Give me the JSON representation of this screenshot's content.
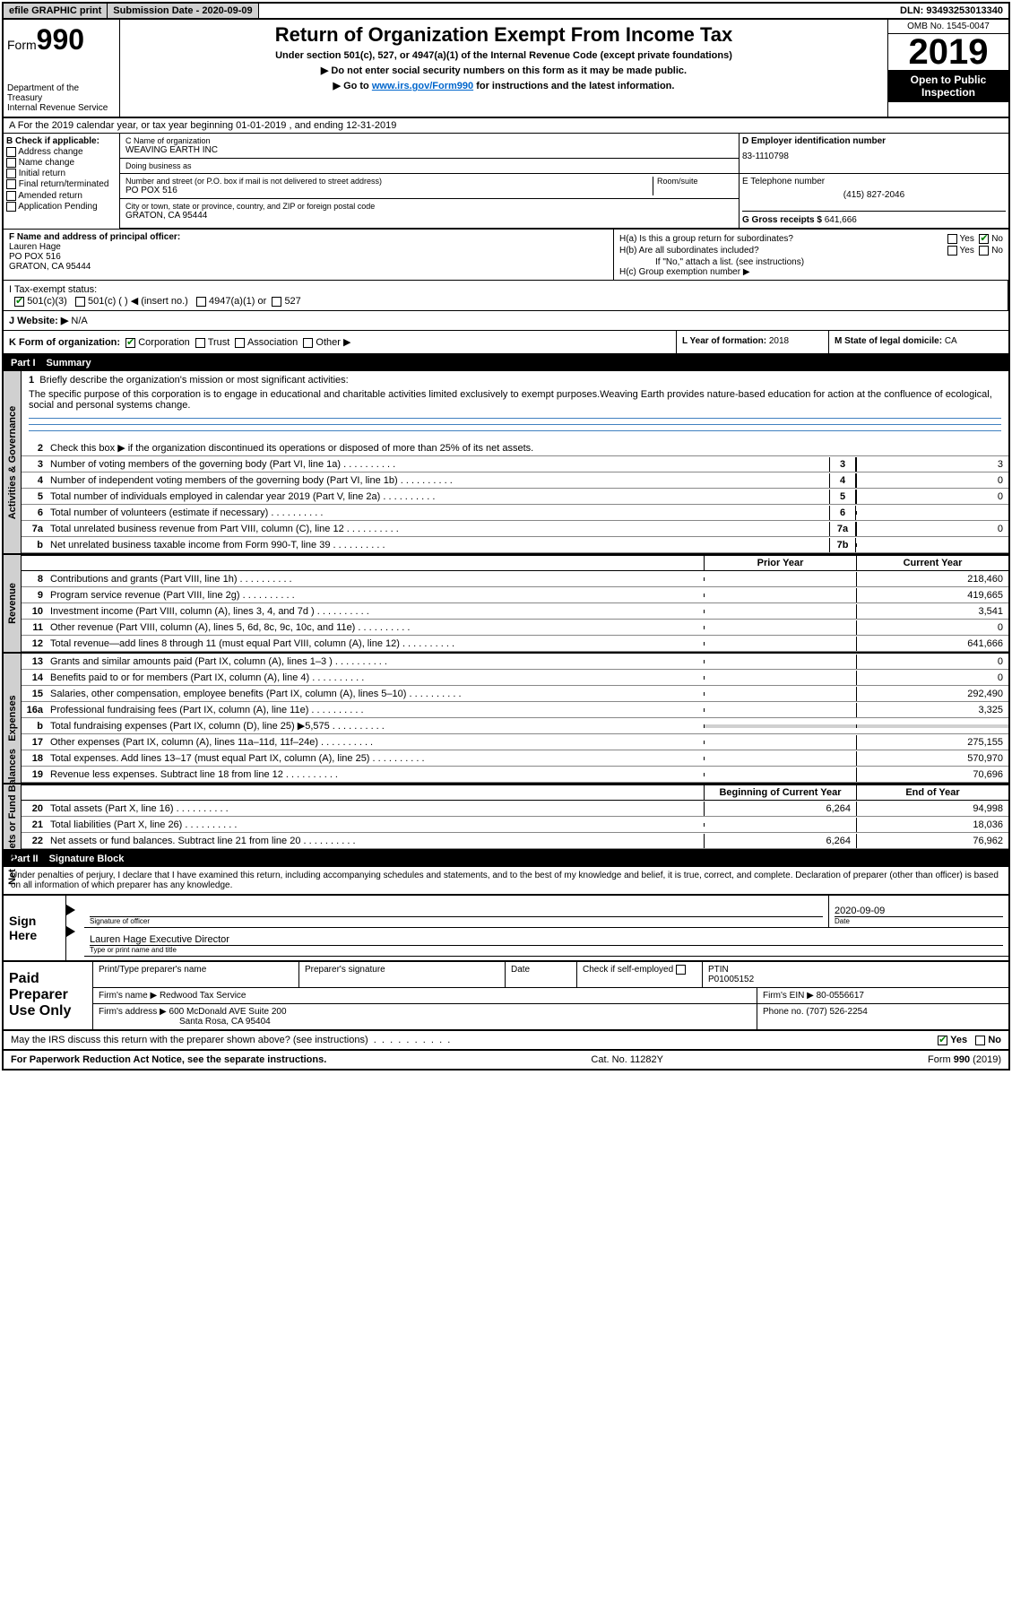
{
  "topbar": {
    "efile": "efile GRAPHIC print",
    "submission_label": "Submission Date - ",
    "submission_date": "2020-09-09",
    "dln": "DLN: 93493253013340"
  },
  "header": {
    "form_word": "Form",
    "form_num": "990",
    "dept": "Department of the Treasury\nInternal Revenue Service",
    "title": "Return of Organization Exempt From Income Tax",
    "subtitle1": "Under section 501(c), 527, or 4947(a)(1) of the Internal Revenue Code (except private foundations)",
    "subtitle2": "▶ Do not enter social security numbers on this form as it may be made public.",
    "subtitle3_pre": "▶ Go to ",
    "subtitle3_link": "www.irs.gov/Form990",
    "subtitle3_post": " for instructions and the latest information.",
    "omb": "OMB No. 1545-0047",
    "year": "2019",
    "open_pub": "Open to Public Inspection"
  },
  "row_a": "A  For the 2019 calendar year, or tax year beginning 01-01-2019     , and ending 12-31-2019",
  "b": {
    "header": "B Check if applicable:",
    "opts": [
      "Address change",
      "Name change",
      "Initial return",
      "Final return/terminated",
      "Amended return",
      "Application Pending"
    ]
  },
  "c": {
    "name_lbl": "C Name of organization",
    "name": "WEAVING EARTH INC",
    "dba_lbl": "Doing business as",
    "dba": "",
    "addr_lbl": "Number and street (or P.O. box if mail is not delivered to street address)",
    "room_lbl": "Room/suite",
    "addr": "PO POX 516",
    "city_lbl": "City or town, state or province, country, and ZIP or foreign postal code",
    "city": "GRATON, CA  95444"
  },
  "d": {
    "lbl": "D Employer identification number",
    "val": "83-1110798"
  },
  "e": {
    "lbl": "E Telephone number",
    "val": "(415) 827-2046"
  },
  "g": {
    "lbl": "G Gross receipts $ ",
    "val": "641,666"
  },
  "f": {
    "lbl": "F  Name and address of principal officer:",
    "name": "Lauren Hage",
    "addr1": "PO POX 516",
    "addr2": "GRATON, CA  95444"
  },
  "h": {
    "ha": "H(a)  Is this a group return for subordinates?",
    "hb": "H(b)  Are all subordinates included?",
    "hb_note": "If \"No,\" attach a list. (see instructions)",
    "hc": "H(c)  Group exemption number ▶",
    "yes": "Yes",
    "no": "No"
  },
  "i": {
    "lbl": "I  Tax-exempt status:",
    "o1": "501(c)(3)",
    "o2": "501(c) (   ) ◀ (insert no.)",
    "o3": "4947(a)(1) or",
    "o4": "527"
  },
  "j": {
    "lbl": "J   Website: ▶",
    "val": "N/A"
  },
  "k": {
    "lbl": "K Form of organization:",
    "o1": "Corporation",
    "o2": "Trust",
    "o3": "Association",
    "o4": "Other ▶"
  },
  "l": {
    "lbl": "L Year of formation: ",
    "val": "2018"
  },
  "m": {
    "lbl": "M State of legal domicile: ",
    "val": "CA"
  },
  "part1": {
    "hdr_num": "Part I",
    "hdr_title": "Summary",
    "vert1": "Activities & Governance",
    "vert2": "Revenue",
    "vert3": "Expenses",
    "vert4": "Net Assets or Fund Balances",
    "line1_lbl": "Briefly describe the organization's mission or most significant activities:",
    "line1_txt": "The specific purpose of this corporation is to engage in educational and charitable activities limited exclusively to exempt purposes.Weaving Earth provides nature-based education for action at the confluence of ecological, social and personal systems change.",
    "line2": "Check this box ▶     if the organization discontinued its operations or disposed of more than 25% of its net assets.",
    "prior_year": "Prior Year",
    "current_year": "Current Year",
    "boy": "Beginning of Current Year",
    "eoy": "End of Year",
    "rows_ag": [
      {
        "n": "3",
        "d": "Number of voting members of the governing body (Part VI, line 1a)",
        "box": "3",
        "v": "3"
      },
      {
        "n": "4",
        "d": "Number of independent voting members of the governing body (Part VI, line 1b)",
        "box": "4",
        "v": "0"
      },
      {
        "n": "5",
        "d": "Total number of individuals employed in calendar year 2019 (Part V, line 2a)",
        "box": "5",
        "v": "0"
      },
      {
        "n": "6",
        "d": "Total number of volunteers (estimate if necessary)",
        "box": "6",
        "v": ""
      },
      {
        "n": "7a",
        "d": "Total unrelated business revenue from Part VIII, column (C), line 12",
        "box": "7a",
        "v": "0"
      },
      {
        "n": "b",
        "d": "Net unrelated business taxable income from Form 990-T, line 39",
        "box": "7b",
        "v": ""
      }
    ],
    "rows_rev": [
      {
        "n": "8",
        "d": "Contributions and grants (Part VIII, line 1h)",
        "p": "",
        "c": "218,460"
      },
      {
        "n": "9",
        "d": "Program service revenue (Part VIII, line 2g)",
        "p": "",
        "c": "419,665"
      },
      {
        "n": "10",
        "d": "Investment income (Part VIII, column (A), lines 3, 4, and 7d )",
        "p": "",
        "c": "3,541"
      },
      {
        "n": "11",
        "d": "Other revenue (Part VIII, column (A), lines 5, 6d, 8c, 9c, 10c, and 11e)",
        "p": "",
        "c": "0"
      },
      {
        "n": "12",
        "d": "Total revenue—add lines 8 through 11 (must equal Part VIII, column (A), line 12)",
        "p": "",
        "c": "641,666"
      }
    ],
    "rows_exp": [
      {
        "n": "13",
        "d": "Grants and similar amounts paid (Part IX, column (A), lines 1–3 )",
        "p": "",
        "c": "0"
      },
      {
        "n": "14",
        "d": "Benefits paid to or for members (Part IX, column (A), line 4)",
        "p": "",
        "c": "0"
      },
      {
        "n": "15",
        "d": "Salaries, other compensation, employee benefits (Part IX, column (A), lines 5–10)",
        "p": "",
        "c": "292,490"
      },
      {
        "n": "16a",
        "d": "Professional fundraising fees (Part IX, column (A), line 11e)",
        "p": "",
        "c": "3,325"
      },
      {
        "n": "b",
        "d": "Total fundraising expenses (Part IX, column (D), line 25) ▶5,575",
        "shaded": true
      },
      {
        "n": "17",
        "d": "Other expenses (Part IX, column (A), lines 11a–11d, 11f–24e)",
        "p": "",
        "c": "275,155"
      },
      {
        "n": "18",
        "d": "Total expenses. Add lines 13–17 (must equal Part IX, column (A), line 25)",
        "p": "",
        "c": "570,970"
      },
      {
        "n": "19",
        "d": "Revenue less expenses. Subtract line 18 from line 12",
        "p": "",
        "c": "70,696"
      }
    ],
    "rows_net": [
      {
        "n": "20",
        "d": "Total assets (Part X, line 16)",
        "p": "6,264",
        "c": "94,998"
      },
      {
        "n": "21",
        "d": "Total liabilities (Part X, line 26)",
        "p": "",
        "c": "18,036"
      },
      {
        "n": "22",
        "d": "Net assets or fund balances. Subtract line 21 from line 20",
        "p": "6,264",
        "c": "76,962"
      }
    ]
  },
  "part2": {
    "hdr_num": "Part II",
    "hdr_title": "Signature Block",
    "penalties": "Under penalties of perjury, I declare that I have examined this return, including accompanying schedules and statements, and to the best of my knowledge and belief, it is true, correct, and complete. Declaration of preparer (other than officer) is based on all information of which preparer has any knowledge."
  },
  "sign": {
    "label": "Sign Here",
    "sig_officer": "Signature of officer",
    "date_lbl": "Date",
    "date_val": "2020-09-09",
    "name_title": "Lauren Hage  Executive Director",
    "type_lbl": "Type or print name and title"
  },
  "paid": {
    "label": "Paid Preparer Use Only",
    "print_name_lbl": "Print/Type preparer's name",
    "sig_lbl": "Preparer's signature",
    "date_lbl": "Date",
    "check_lbl": "Check       if self-employed",
    "ptin_lbl": "PTIN",
    "ptin": "P01005152",
    "firm_name_lbl": "Firm's name    ▶",
    "firm_name": "Redwood Tax Service",
    "firm_ein_lbl": "Firm's EIN ▶",
    "firm_ein": "80-0556617",
    "firm_addr_lbl": "Firm's address ▶",
    "firm_addr1": "600 McDonald AVE Suite 200",
    "firm_addr2": "Santa Rosa, CA  95404",
    "phone_lbl": "Phone no. ",
    "phone": "(707) 526-2254"
  },
  "irs_discuss": {
    "q": "May the IRS discuss this return with the preparer shown above? (see instructions)",
    "yes": "Yes",
    "no": "No"
  },
  "footer": {
    "left": "For Paperwork Reduction Act Notice, see the separate instructions.",
    "mid": "Cat. No. 11282Y",
    "right": "Form 990 (2019)"
  }
}
